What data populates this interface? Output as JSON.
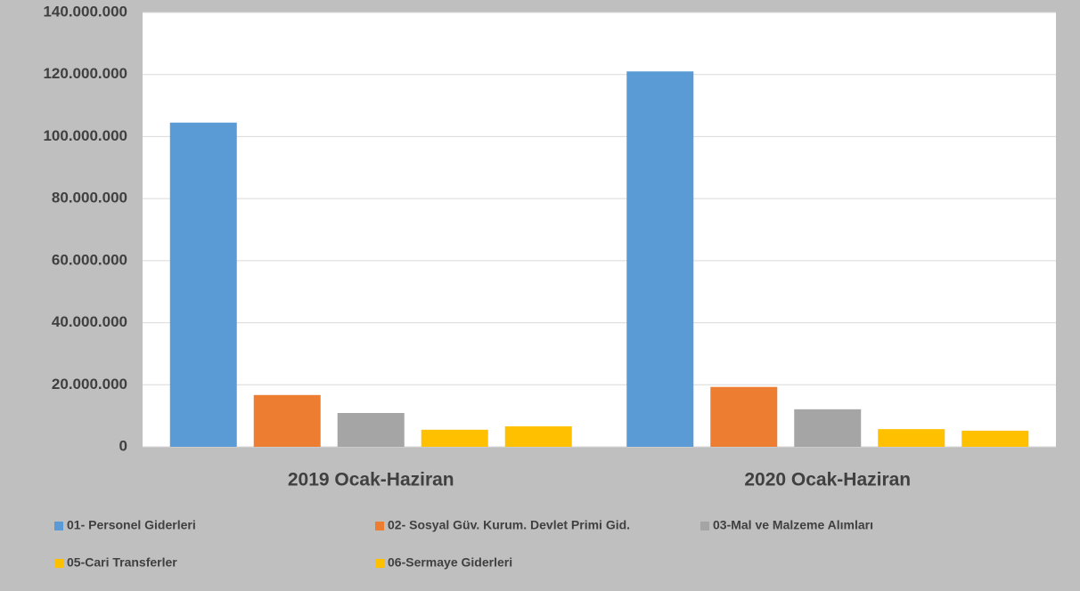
{
  "chart_data": {
    "type": "bar",
    "categories": [
      "2019 Ocak-Haziran",
      "2020 Ocak-Haziran"
    ],
    "series": [
      {
        "name": "01- Personel Giderleri",
        "color": "#5b9bd5",
        "values": [
          104500000,
          121000000
        ]
      },
      {
        "name": "02- Sosyal Güv. Kurum. Devlet Primi Gid.",
        "color": "#ed7d31",
        "values": [
          16700000,
          19300000
        ]
      },
      {
        "name": "03-Mal ve Malzeme Alımları",
        "color": "#a5a5a5",
        "values": [
          10900000,
          12100000
        ]
      },
      {
        "name": "05-Cari Transferler",
        "color": "#ffc000",
        "values": [
          5500000,
          5700000
        ]
      },
      {
        "name": "06-Sermaye Giderleri",
        "color": "#ffc000",
        "values": [
          6600000,
          5200000
        ]
      }
    ],
    "ylim": [
      0,
      140000000
    ],
    "yticks": [
      {
        "value": 0,
        "label": "0"
      },
      {
        "value": 20000000,
        "label": "20.000.000"
      },
      {
        "value": 40000000,
        "label": "40.000.000"
      },
      {
        "value": 60000000,
        "label": "60.000.000"
      },
      {
        "value": 80000000,
        "label": "80.000.000"
      },
      {
        "value": 100000000,
        "label": "100.000.000"
      },
      {
        "value": 120000000,
        "label": "120.000.000"
      },
      {
        "value": 140000000,
        "label": "140.000.000"
      }
    ],
    "grid": true,
    "legend": "bottom"
  }
}
